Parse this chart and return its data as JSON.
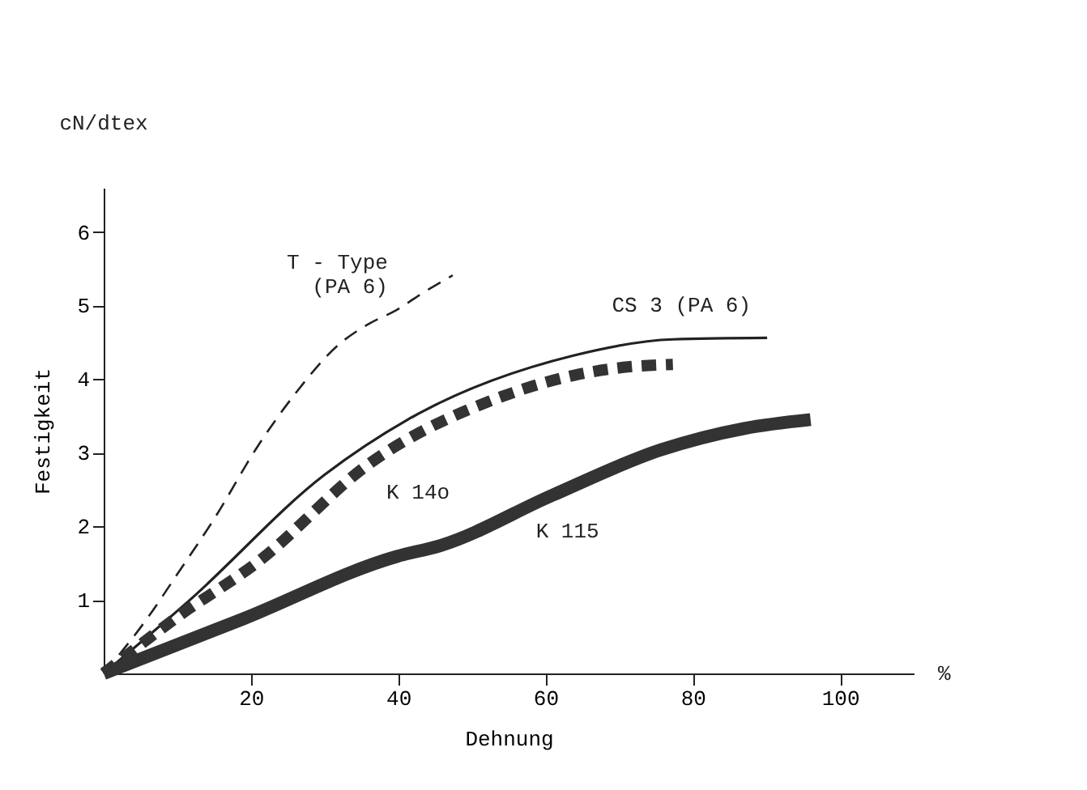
{
  "chart_data": {
    "type": "line",
    "xlabel": "Dehnung",
    "ylabel": "Festigkeit",
    "xlim": [
      0,
      110
    ],
    "ylim": [
      0,
      6.6
    ],
    "xticks": [
      20,
      40,
      60,
      80,
      100
    ],
    "yticks": [
      1,
      2,
      3,
      4,
      5,
      6
    ],
    "grid": false,
    "series": [
      {
        "name": "T - Type\n(PA 6)",
        "color": "#222222",
        "line_style": "dashed",
        "x": [
          0,
          6,
          10,
          15,
          21,
          26,
          31.7,
          36,
          39.8,
          43,
          47.4
        ],
        "values": [
          0,
          0.76,
          1.35,
          2.1,
          3.1,
          3.8,
          4.45,
          4.75,
          4.94,
          5.15,
          5.41
        ]
      },
      {
        "name": "CS 3 (PA 6)",
        "color": "#222222",
        "line_style": "solid",
        "x": [
          0,
          11.5,
          30,
          41.3,
          63.8,
          77.3,
          90.1
        ],
        "values": [
          0,
          0.98,
          2.7,
          3.45,
          4.32,
          4.54,
          4.56
        ]
      },
      {
        "name": "K 14o",
        "color": "#333333",
        "line_style": "dashed",
        "x": [
          0,
          9.9,
          21,
          36.2,
          54,
          63.8,
          70.6,
          77.3
        ],
        "values": [
          0,
          0.76,
          1.52,
          2.86,
          3.76,
          4.05,
          4.16,
          4.2
        ]
      },
      {
        "name": "K 115",
        "color": "#333333",
        "line_style": "solid",
        "x": [
          0,
          18.9,
          39.8,
          45.8,
          60.9,
          75.7,
          87,
          96
        ],
        "values": [
          0,
          0.74,
          1.59,
          1.74,
          2.42,
          3.04,
          3.33,
          3.45
        ]
      }
    ],
    "annotations": [
      "cN/dtex",
      "%"
    ]
  }
}
